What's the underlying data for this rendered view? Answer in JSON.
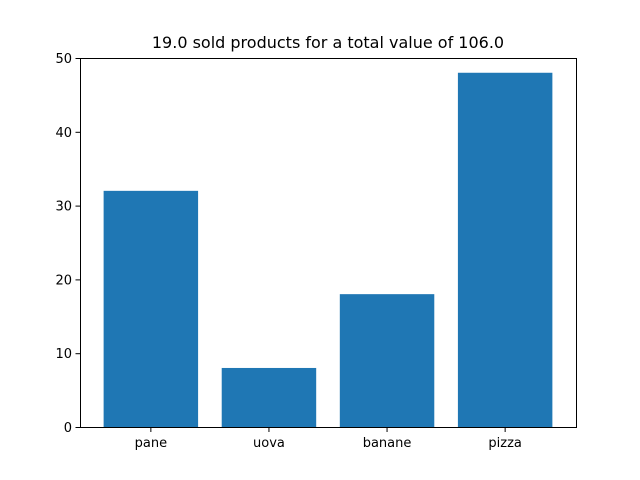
{
  "chart_data": {
    "type": "bar",
    "title": "19.0 sold products for a total value of 106.0",
    "xlabel": "",
    "ylabel": "",
    "categories": [
      "pane",
      "uova",
      "banane",
      "pizza"
    ],
    "values": [
      32,
      8,
      18,
      48
    ],
    "ylim": [
      0,
      50
    ],
    "yticks": [
      0,
      10,
      20,
      30,
      40,
      50
    ],
    "ytick_labels": [
      "0",
      "10",
      "20",
      "30",
      "40",
      "50"
    ],
    "bar_color": "#1f77b4",
    "grid": false,
    "legend": "none"
  }
}
